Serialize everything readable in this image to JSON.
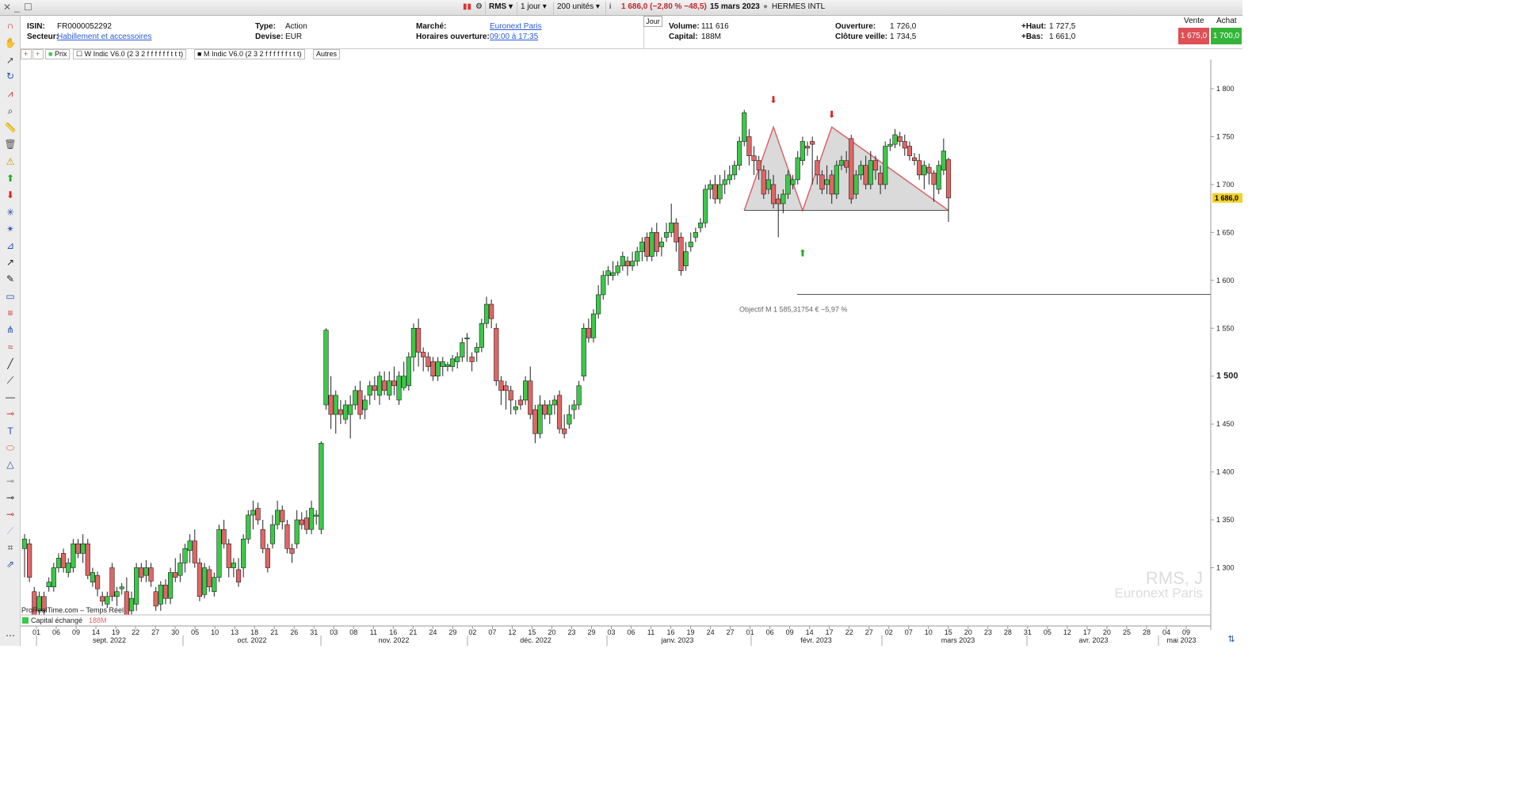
{
  "topbar": {
    "symbol": "RMS",
    "period": "1 jour",
    "units": "200 unités",
    "quote": "1 686,0 (−2,80 % −48,5)",
    "date": "15 mars 2023",
    "name": "HERMES INTL"
  },
  "info": {
    "isin_label": "ISIN:",
    "isin": "FR0000052292",
    "secteur_label": "Secteur:",
    "secteur": "Habillement et accessoires",
    "type_label": "Type:",
    "type": "Action",
    "devise_label": "Devise:",
    "devise": "EUR",
    "marche_label": "Marché:",
    "marche": "Euronext Paris",
    "horaires_label": "Horaires ouverture:",
    "horaires": "09:00 à 17:35",
    "jour_tab": "Jour",
    "volume_label": "Volume:",
    "volume": "111 616",
    "capital_label": "Capital:",
    "capital": "188M",
    "ouverture_label": "Ouverture:",
    "ouverture": "1 726,0",
    "cloture_label": "Clôture veille:",
    "cloture": "1 734,5",
    "haut_label": "+Haut:",
    "haut": "1 727,5",
    "bas_label": "+Bas:",
    "bas": "1 661,0",
    "vente_label": "Vente",
    "vente": "1 675,0",
    "achat_label": "Achat",
    "achat": "1 700,0"
  },
  "tabs": {
    "prix": "Prix",
    "w_indic": "W Indic V6.0 (2 3 2 f f f f f f t t t)",
    "m_indic": "M Indic V6.0 (2 3 2 f f f f f f t t t)",
    "autres": "Autres"
  },
  "chart_labels": {
    "objectif": "Objectif M 1 585,31754 € −5,97 %",
    "watermark_1": "RMS, J",
    "watermark_2": "Euronext Paris",
    "source": "ProRealTime.com – Temps Réel",
    "volume_label": "Capital échangé",
    "volume_value": "188M",
    "last_price": "1 686,0"
  },
  "colors": {
    "up": "#3cc84a",
    "down": "#e06666",
    "pattern_line": "#d9656b",
    "pattern_fill": "#d4d4d4"
  },
  "chart_data": {
    "type": "candlestick",
    "ylim": [
      1277,
      1828
    ],
    "y_ticks": [
      "1 800",
      "1 750",
      "1 700",
      "1 650",
      "1 600",
      "1 550",
      "1 500",
      "1 450",
      "1 400",
      "1 350",
      "1 300"
    ],
    "y_tick_values": [
      1800,
      1750,
      1700,
      1650,
      1600,
      1550,
      1500,
      1450,
      1400,
      1350,
      1300
    ],
    "x_ticks": [
      "01",
      "06",
      "09",
      "14",
      "19",
      "22",
      "27",
      "30",
      "05",
      "10",
      "13",
      "18",
      "21",
      "26",
      "31",
      "03",
      "08",
      "11",
      "16",
      "21",
      "24",
      "29",
      "02",
      "07",
      "12",
      "15",
      "20",
      "23",
      "29",
      "03",
      "06",
      "11",
      "16",
      "19",
      "24",
      "27",
      "01",
      "06",
      "09",
      "14",
      "17",
      "22",
      "27",
      "02",
      "07",
      "10",
      "15",
      "20",
      "23",
      "28",
      "31",
      "05",
      "12",
      "17",
      "20",
      "25",
      "28",
      "04",
      "09"
    ],
    "month_labels": [
      "sept. 2022",
      "oct. 2022",
      "nov. 2022",
      "déc. 2022",
      "janv. 2023",
      "févr. 2023",
      "mars 2023",
      "avr. 2023",
      "mai 2023"
    ],
    "candles": [
      [
        1320,
        1330,
        1290,
        1335
      ],
      [
        1325,
        1290,
        1285,
        1330
      ],
      [
        1275,
        1250,
        1245,
        1280
      ],
      [
        1255,
        1270,
        1250,
        1275
      ],
      [
        1270,
        1255,
        1250,
        1275
      ],
      [
        1280,
        1285,
        1275,
        1290
      ],
      [
        1280,
        1300,
        1275,
        1305
      ],
      [
        1300,
        1310,
        1295,
        1315
      ],
      [
        1315,
        1300,
        1295,
        1320
      ],
      [
        1295,
        1305,
        1290,
        1310
      ],
      [
        1300,
        1325,
        1295,
        1330
      ],
      [
        1325,
        1315,
        1310,
        1330
      ],
      [
        1315,
        1325,
        1305,
        1335
      ],
      [
        1325,
        1292,
        1288,
        1330
      ],
      [
        1285,
        1295,
        1280,
        1300
      ],
      [
        1292,
        1278,
        1270,
        1296
      ],
      [
        1270,
        1265,
        1260,
        1275
      ],
      [
        1262,
        1270,
        1258,
        1275
      ],
      [
        1300,
        1270,
        1265,
        1305
      ],
      [
        1270,
        1275,
        1260,
        1280
      ],
      [
        1278,
        1280,
        1272,
        1284
      ],
      [
        1275,
        1250,
        1245,
        1290
      ],
      [
        1255,
        1268,
        1250,
        1275
      ],
      [
        1262,
        1300,
        1255,
        1305
      ],
      [
        1300,
        1290,
        1285,
        1305
      ],
      [
        1292,
        1300,
        1285,
        1308
      ],
      [
        1300,
        1286,
        1280,
        1305
      ],
      [
        1275,
        1260,
        1255,
        1280
      ],
      [
        1262,
        1282,
        1255,
        1286
      ],
      [
        1282,
        1268,
        1262,
        1288
      ],
      [
        1268,
        1295,
        1262,
        1300
      ],
      [
        1295,
        1290,
        1285,
        1310
      ],
      [
        1292,
        1305,
        1285,
        1315
      ],
      [
        1305,
        1320,
        1295,
        1325
      ],
      [
        1318,
        1328,
        1305,
        1335
      ],
      [
        1328,
        1305,
        1300,
        1340
      ],
      [
        1305,
        1270,
        1265,
        1310
      ],
      [
        1272,
        1300,
        1268,
        1305
      ],
      [
        1298,
        1280,
        1275,
        1302
      ],
      [
        1275,
        1290,
        1270,
        1295
      ],
      [
        1290,
        1340,
        1285,
        1345
      ],
      [
        1340,
        1325,
        1320,
        1350
      ],
      [
        1325,
        1300,
        1290,
        1330
      ],
      [
        1300,
        1305,
        1290,
        1310
      ],
      [
        1298,
        1285,
        1280,
        1310
      ],
      [
        1300,
        1330,
        1290,
        1335
      ],
      [
        1330,
        1355,
        1325,
        1360
      ],
      [
        1355,
        1360,
        1340,
        1370
      ],
      [
        1362,
        1350,
        1345,
        1368
      ],
      [
        1340,
        1320,
        1315,
        1350
      ],
      [
        1320,
        1300,
        1295,
        1325
      ],
      [
        1325,
        1345,
        1320,
        1355
      ],
      [
        1345,
        1360,
        1340,
        1370
      ],
      [
        1360,
        1348,
        1340,
        1365
      ],
      [
        1345,
        1320,
        1315,
        1350
      ],
      [
        1320,
        1315,
        1305,
        1325
      ],
      [
        1325,
        1350,
        1320,
        1360
      ],
      [
        1350,
        1345,
        1340,
        1358
      ],
      [
        1352,
        1340,
        1335,
        1360
      ],
      [
        1340,
        1362,
        1335,
        1370
      ],
      [
        1355,
        1355,
        1345,
        1360
      ],
      [
        1340,
        1430,
        1335,
        1432
      ],
      [
        1470,
        1548,
        1465,
        1550
      ],
      [
        1480,
        1460,
        1445,
        1500
      ],
      [
        1460,
        1480,
        1440,
        1485
      ],
      [
        1465,
        1460,
        1450,
        1475
      ],
      [
        1455,
        1470,
        1450,
        1475
      ],
      [
        1460,
        1470,
        1435,
        1480
      ],
      [
        1470,
        1485,
        1465,
        1490
      ],
      [
        1485,
        1460,
        1455,
        1495
      ],
      [
        1465,
        1475,
        1455,
        1480
      ],
      [
        1480,
        1490,
        1470,
        1495
      ],
      [
        1490,
        1485,
        1475,
        1500
      ],
      [
        1480,
        1500,
        1470,
        1505
      ],
      [
        1495,
        1485,
        1480,
        1505
      ],
      [
        1480,
        1495,
        1475,
        1505
      ],
      [
        1495,
        1490,
        1480,
        1510
      ],
      [
        1475,
        1500,
        1470,
        1505
      ],
      [
        1488,
        1500,
        1485,
        1515
      ],
      [
        1490,
        1520,
        1485,
        1525
      ],
      [
        1520,
        1550,
        1505,
        1555
      ],
      [
        1550,
        1525,
        1510,
        1560
      ],
      [
        1525,
        1520,
        1505,
        1530
      ],
      [
        1520,
        1510,
        1505,
        1525
      ],
      [
        1515,
        1500,
        1495,
        1520
      ],
      [
        1500,
        1515,
        1495,
        1520
      ],
      [
        1510,
        1515,
        1500,
        1520
      ],
      [
        1510,
        1512,
        1505,
        1515
      ],
      [
        1510,
        1518,
        1505,
        1522
      ],
      [
        1515,
        1520,
        1508,
        1525
      ],
      [
        1520,
        1535,
        1515,
        1540
      ],
      [
        1540,
        1540,
        1515,
        1545
      ],
      [
        1520,
        1515,
        1505,
        1525
      ],
      [
        1525,
        1530,
        1515,
        1535
      ],
      [
        1530,
        1555,
        1525,
        1560
      ],
      [
        1555,
        1575,
        1550,
        1583
      ],
      [
        1575,
        1560,
        1550,
        1580
      ],
      [
        1550,
        1495,
        1490,
        1555
      ],
      [
        1495,
        1485,
        1470,
        1500
      ],
      [
        1490,
        1485,
        1465,
        1495
      ],
      [
        1485,
        1475,
        1460,
        1490
      ],
      [
        1465,
        1468,
        1460,
        1475
      ],
      [
        1475,
        1470,
        1465,
        1480
      ],
      [
        1475,
        1495,
        1470,
        1500
      ],
      [
        1495,
        1460,
        1455,
        1510
      ],
      [
        1465,
        1440,
        1430,
        1470
      ],
      [
        1440,
        1470,
        1435,
        1480
      ],
      [
        1470,
        1460,
        1455,
        1475
      ],
      [
        1460,
        1470,
        1450,
        1475
      ],
      [
        1470,
        1475,
        1460,
        1480
      ],
      [
        1480,
        1445,
        1440,
        1485
      ],
      [
        1445,
        1440,
        1435,
        1460
      ],
      [
        1450,
        1460,
        1445,
        1470
      ],
      [
        1465,
        1470,
        1455,
        1475
      ],
      [
        1470,
        1490,
        1465,
        1495
      ],
      [
        1500,
        1550,
        1495,
        1555
      ],
      [
        1550,
        1540,
        1535,
        1560
      ],
      [
        1540,
        1565,
        1535,
        1570
      ],
      [
        1565,
        1585,
        1560,
        1595
      ],
      [
        1585,
        1605,
        1580,
        1610
      ],
      [
        1605,
        1610,
        1595,
        1615
      ],
      [
        1605,
        1608,
        1600,
        1620
      ],
      [
        1608,
        1615,
        1605,
        1620
      ],
      [
        1615,
        1625,
        1610,
        1630
      ],
      [
        1620,
        1615,
        1605,
        1625
      ],
      [
        1615,
        1620,
        1610,
        1630
      ],
      [
        1620,
        1630,
        1615,
        1635
      ],
      [
        1630,
        1640,
        1620,
        1645
      ],
      [
        1645,
        1625,
        1620,
        1650
      ],
      [
        1625,
        1650,
        1620,
        1655
      ],
      [
        1650,
        1630,
        1625,
        1660
      ],
      [
        1635,
        1640,
        1625,
        1645
      ],
      [
        1645,
        1650,
        1640,
        1660
      ],
      [
        1650,
        1660,
        1645,
        1680
      ],
      [
        1660,
        1640,
        1630,
        1665
      ],
      [
        1645,
        1610,
        1605,
        1650
      ],
      [
        1615,
        1630,
        1610,
        1640
      ],
      [
        1635,
        1640,
        1630,
        1650
      ],
      [
        1645,
        1650,
        1640,
        1655
      ],
      [
        1655,
        1660,
        1650,
        1665
      ],
      [
        1660,
        1695,
        1655,
        1700
      ],
      [
        1695,
        1700,
        1685,
        1705
      ],
      [
        1700,
        1685,
        1680,
        1710
      ],
      [
        1685,
        1700,
        1680,
        1710
      ],
      [
        1700,
        1705,
        1690,
        1715
      ],
      [
        1705,
        1710,
        1700,
        1720
      ],
      [
        1710,
        1720,
        1705,
        1725
      ],
      [
        1720,
        1745,
        1715,
        1750
      ],
      [
        1745,
        1775,
        1740,
        1778
      ],
      [
        1750,
        1730,
        1720,
        1758
      ],
      [
        1730,
        1725,
        1710,
        1740
      ],
      [
        1725,
        1715,
        1705,
        1730
      ],
      [
        1715,
        1690,
        1685,
        1720
      ],
      [
        1695,
        1705,
        1690,
        1715
      ],
      [
        1700,
        1680,
        1675,
        1710
      ],
      [
        1685,
        1680,
        1645,
        1690
      ],
      [
        1680,
        1690,
        1670,
        1695
      ],
      [
        1690,
        1710,
        1685,
        1715
      ],
      [
        1700,
        1705,
        1695,
        1710
      ],
      [
        1705,
        1728,
        1700,
        1735
      ],
      [
        1725,
        1745,
        1720,
        1750
      ],
      [
        1740,
        1738,
        1730,
        1745
      ],
      [
        1745,
        1742,
        1700,
        1750
      ],
      [
        1725,
        1710,
        1700,
        1730
      ],
      [
        1710,
        1695,
        1690,
        1715
      ],
      [
        1700,
        1705,
        1690,
        1720
      ],
      [
        1710,
        1690,
        1680,
        1715
      ],
      [
        1690,
        1720,
        1685,
        1725
      ],
      [
        1720,
        1725,
        1715,
        1730
      ],
      [
        1725,
        1718,
        1712,
        1735
      ],
      [
        1748,
        1685,
        1680,
        1752
      ],
      [
        1690,
        1710,
        1685,
        1715
      ],
      [
        1710,
        1720,
        1705,
        1725
      ],
      [
        1720,
        1700,
        1695,
        1730
      ],
      [
        1700,
        1725,
        1695,
        1735
      ],
      [
        1725,
        1715,
        1705,
        1730
      ],
      [
        1712,
        1700,
        1690,
        1720
      ],
      [
        1700,
        1740,
        1695,
        1745
      ],
      [
        1740,
        1742,
        1735,
        1748
      ],
      [
        1742,
        1752,
        1738,
        1758
      ],
      [
        1750,
        1745,
        1740,
        1755
      ],
      [
        1745,
        1738,
        1730,
        1752
      ],
      [
        1740,
        1730,
        1725,
        1745
      ],
      [
        1728,
        1725,
        1720,
        1733
      ],
      [
        1725,
        1710,
        1705,
        1732
      ],
      [
        1710,
        1720,
        1695,
        1725
      ],
      [
        1718,
        1712,
        1700,
        1722
      ],
      [
        1712,
        1700,
        1682,
        1715
      ],
      [
        1695,
        1720,
        1690,
        1725
      ],
      [
        1715,
        1735,
        1710,
        1748
      ],
      [
        1726,
        1686,
        1661,
        1728
      ]
    ],
    "pattern": {
      "neckline": 1673,
      "points": [
        [
          1673,
          1673
        ],
        [
          1760,
          1760
        ],
        [
          1673,
          1673
        ],
        [
          1760,
          1760
        ],
        [
          1673,
          1673
        ]
      ],
      "objectif": 1585.32
    }
  }
}
